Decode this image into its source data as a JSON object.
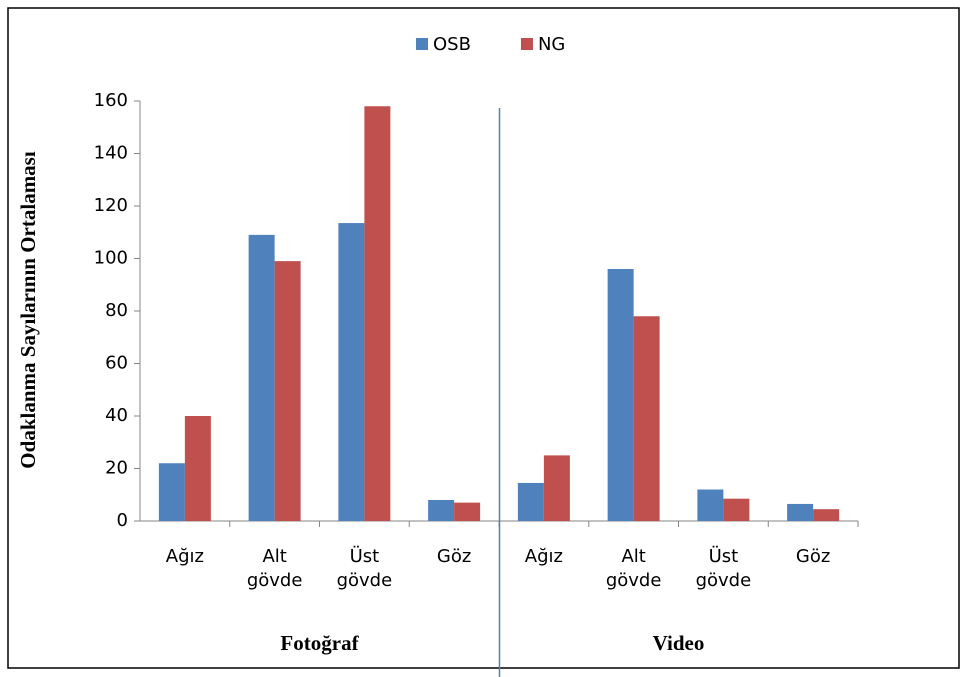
{
  "chart_data": {
    "type": "bar",
    "y_label": "Odaklanma Sayılarının Ortalaması",
    "categories": [
      "Ağız",
      "Alt gövde",
      "Üst gövde",
      "Göz",
      "Ağız",
      "Alt gövde",
      "Üst gövde",
      "Göz"
    ],
    "groups": [
      "Fotoğraf",
      "Video"
    ],
    "series": [
      {
        "name": "OSB",
        "color": "#4f81bd",
        "values": [
          22,
          109,
          113.5,
          8,
          14.5,
          96,
          12,
          6.5
        ]
      },
      {
        "name": "NG",
        "color": "#c0504d",
        "values": [
          40,
          99,
          158,
          7,
          25,
          78,
          8.5,
          4.5
        ]
      }
    ],
    "ylim": [
      0,
      160
    ],
    "yticks": [
      0,
      20,
      40,
      60,
      80,
      100,
      120,
      140,
      160
    ],
    "legend": "top",
    "grid": false
  }
}
